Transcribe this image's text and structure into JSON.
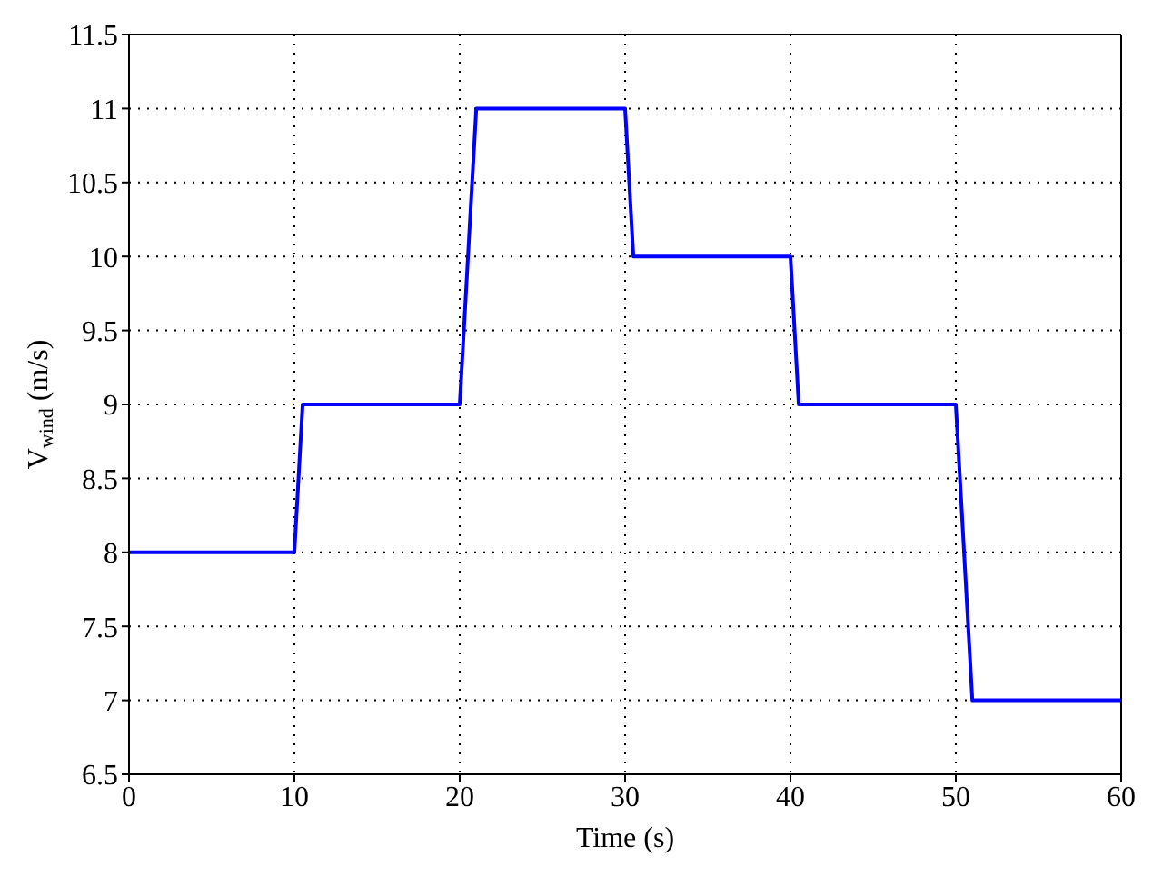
{
  "chart_data": {
    "type": "line",
    "xlabel": "Time (s)",
    "ylabel": "V$_{wind}$ (m/s)",
    "x": [
      0,
      10,
      10.5,
      20,
      21,
      30,
      30.5,
      40,
      40.5,
      50,
      51,
      60
    ],
    "series": [
      {
        "color": "#0000ff",
        "values": [
          8,
          8,
          9,
          9,
          11,
          11,
          10,
          10,
          9,
          9,
          7,
          7
        ]
      }
    ],
    "xlim": [
      0,
      60
    ],
    "xticks": [
      0,
      10,
      20,
      30,
      40,
      50,
      60
    ],
    "ylim": [
      6.5,
      11.5
    ],
    "yticks": [
      6.5,
      7,
      7.5,
      8,
      8.5,
      9,
      9.5,
      10,
      10.5,
      11,
      11.5
    ],
    "grid": true,
    "legend": false,
    "marker": "none",
    "line_style": "solid"
  }
}
